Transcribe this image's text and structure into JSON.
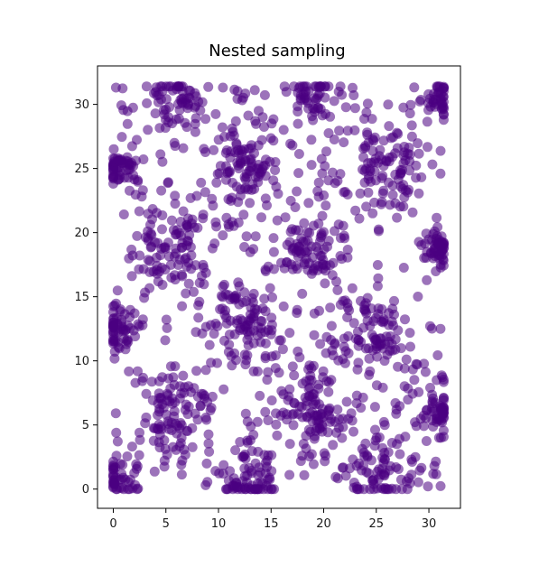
{
  "chart_data": {
    "type": "scatter",
    "title": "Nested sampling",
    "xlabel": "",
    "ylabel": "",
    "xlim": [
      -1.5,
      33
    ],
    "ylim": [
      -1.5,
      33
    ],
    "xticks": [
      0,
      5,
      10,
      15,
      20,
      25,
      30
    ],
    "yticks": [
      0,
      5,
      10,
      15,
      20,
      25,
      30
    ],
    "grid": false,
    "point_color": "#4b0082",
    "point_alpha": 0.55,
    "clusters": [
      {
        "x": 0.5,
        "y": 0.8,
        "spread": 0.9,
        "count": 45
      },
      {
        "x": 12.5,
        "y": 0.8,
        "spread": 1.4,
        "count": 60
      },
      {
        "x": 25.5,
        "y": 0.8,
        "spread": 1.7,
        "count": 65
      },
      {
        "x": 6.0,
        "y": 6.0,
        "spread": 1.7,
        "count": 75
      },
      {
        "x": 19.0,
        "y": 6.2,
        "spread": 1.8,
        "count": 85
      },
      {
        "x": 31.0,
        "y": 6.0,
        "spread": 0.8,
        "count": 50
      },
      {
        "x": 0.3,
        "y": 12.5,
        "spread": 0.8,
        "count": 55
      },
      {
        "x": 12.5,
        "y": 12.5,
        "spread": 1.6,
        "count": 75
      },
      {
        "x": 25.0,
        "y": 12.3,
        "spread": 1.6,
        "count": 70
      },
      {
        "x": 6.0,
        "y": 19.0,
        "spread": 1.6,
        "count": 75
      },
      {
        "x": 19.0,
        "y": 19.0,
        "spread": 1.5,
        "count": 70
      },
      {
        "x": 31.0,
        "y": 19.0,
        "spread": 0.8,
        "count": 50
      },
      {
        "x": 0.4,
        "y": 25.0,
        "spread": 0.8,
        "count": 55
      },
      {
        "x": 12.8,
        "y": 25.3,
        "spread": 1.5,
        "count": 70
      },
      {
        "x": 25.5,
        "y": 25.2,
        "spread": 1.7,
        "count": 80
      },
      {
        "x": 6.0,
        "y": 30.8,
        "spread": 1.2,
        "count": 55
      },
      {
        "x": 19.0,
        "y": 30.8,
        "spread": 1.2,
        "count": 50
      },
      {
        "x": 30.8,
        "y": 30.5,
        "spread": 0.8,
        "count": 40
      }
    ],
    "background_points": 520,
    "data_range": [
      0,
      31.4
    ]
  }
}
